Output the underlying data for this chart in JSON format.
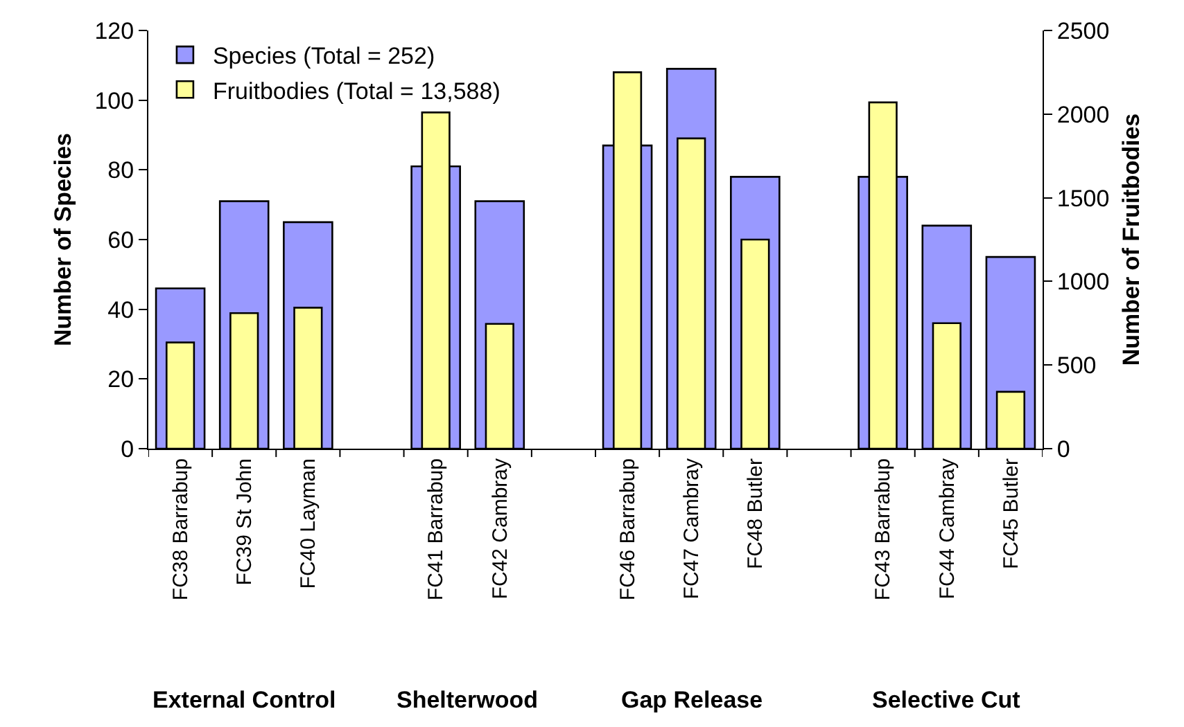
{
  "chart_data": {
    "type": "bar",
    "categories": [
      "FC38 Barrabup",
      "FC39 St John",
      "FC40 Layman",
      null,
      "FC41 Barrabup",
      "FC42 Cambray",
      null,
      "FC46 Barrabup",
      "FC47 Cambray",
      "FC48 Butler",
      null,
      "FC43 Barrabup",
      "FC44 Cambray",
      "FC45 Butler"
    ],
    "series": [
      {
        "name": "Species (Total = 252)",
        "color": "#9999ff",
        "values": [
          46,
          71,
          65,
          null,
          81,
          71,
          null,
          87,
          109,
          78,
          null,
          78,
          64,
          55
        ]
      },
      {
        "name": "Fruitbodies (Total = 13,588)",
        "color": "#ffff99",
        "axis": "y2",
        "values": [
          635,
          810,
          843,
          null,
          2010,
          746,
          null,
          2250,
          1855,
          1250,
          null,
          2070,
          750,
          340
        ]
      }
    ],
    "ylabel": "Number of Species",
    "y2label": "Number of Fruitbodies",
    "ylim": [
      0,
      120
    ],
    "yticks": [
      0,
      20,
      40,
      60,
      80,
      100,
      120
    ],
    "y2lim": [
      0,
      2500
    ],
    "y2ticks": [
      0,
      500,
      1000,
      1500,
      2000,
      2500
    ],
    "annotations": [
      "External Control",
      "Shelterwood",
      "Gap Release",
      "Selective Cut"
    ],
    "legend": "top left",
    "grid": false
  }
}
